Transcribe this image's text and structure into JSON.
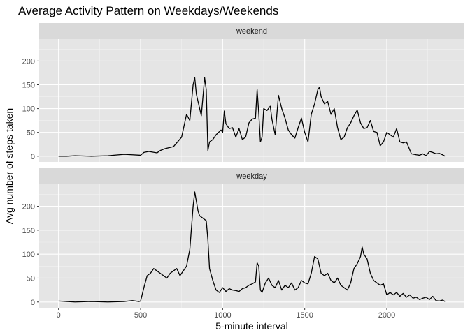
{
  "chart_data": {
    "type": "line",
    "title": "Average Activity Pattern on Weekdays/Weekends",
    "xlabel": "5-minute interval",
    "ylabel": "Avg number of steps taken",
    "xlim": [
      0,
      2355
    ],
    "ylim": [
      0,
      240
    ],
    "x_ticks": [
      0,
      500,
      1000,
      1500,
      2000
    ],
    "x_tick_labels": [
      "0",
      "500",
      "1000",
      "1500",
      "2000"
    ],
    "y_ticks": [
      0,
      50,
      100,
      150,
      200
    ],
    "y_tick_labels": [
      "0",
      "50",
      "100",
      "150",
      "200"
    ],
    "grid": true,
    "line_color": "#000000",
    "panel_background": "#e5e5e5",
    "strip_background": "#d9d9d9",
    "panels": [
      {
        "label": "weekend",
        "points": [
          [
            0,
            0
          ],
          [
            50,
            0
          ],
          [
            100,
            1
          ],
          [
            200,
            0
          ],
          [
            300,
            1
          ],
          [
            400,
            4
          ],
          [
            450,
            3
          ],
          [
            500,
            2
          ],
          [
            520,
            8
          ],
          [
            550,
            10
          ],
          [
            600,
            7
          ],
          [
            620,
            12
          ],
          [
            650,
            16
          ],
          [
            700,
            20
          ],
          [
            720,
            28
          ],
          [
            750,
            40
          ],
          [
            780,
            88
          ],
          [
            800,
            75
          ],
          [
            820,
            150
          ],
          [
            830,
            165
          ],
          [
            840,
            130
          ],
          [
            850,
            115
          ],
          [
            860,
            100
          ],
          [
            870,
            85
          ],
          [
            890,
            165
          ],
          [
            900,
            140
          ],
          [
            910,
            12
          ],
          [
            920,
            30
          ],
          [
            940,
            35
          ],
          [
            960,
            45
          ],
          [
            990,
            55
          ],
          [
            1000,
            50
          ],
          [
            1010,
            95
          ],
          [
            1020,
            68
          ],
          [
            1040,
            58
          ],
          [
            1060,
            60
          ],
          [
            1080,
            40
          ],
          [
            1100,
            58
          ],
          [
            1120,
            35
          ],
          [
            1140,
            40
          ],
          [
            1160,
            70
          ],
          [
            1180,
            78
          ],
          [
            1200,
            80
          ],
          [
            1210,
            140
          ],
          [
            1220,
            90
          ],
          [
            1230,
            30
          ],
          [
            1240,
            40
          ],
          [
            1250,
            100
          ],
          [
            1270,
            96
          ],
          [
            1290,
            105
          ],
          [
            1300,
            78
          ],
          [
            1320,
            45
          ],
          [
            1340,
            128
          ],
          [
            1360,
            100
          ],
          [
            1380,
            80
          ],
          [
            1400,
            55
          ],
          [
            1420,
            45
          ],
          [
            1440,
            38
          ],
          [
            1460,
            60
          ],
          [
            1480,
            80
          ],
          [
            1500,
            50
          ],
          [
            1520,
            30
          ],
          [
            1540,
            88
          ],
          [
            1560,
            110
          ],
          [
            1580,
            140
          ],
          [
            1590,
            145
          ],
          [
            1600,
            125
          ],
          [
            1620,
            110
          ],
          [
            1640,
            115
          ],
          [
            1660,
            88
          ],
          [
            1680,
            100
          ],
          [
            1700,
            60
          ],
          [
            1720,
            35
          ],
          [
            1740,
            40
          ],
          [
            1760,
            60
          ],
          [
            1780,
            70
          ],
          [
            1800,
            85
          ],
          [
            1820,
            97
          ],
          [
            1840,
            70
          ],
          [
            1860,
            58
          ],
          [
            1880,
            60
          ],
          [
            1900,
            75
          ],
          [
            1920,
            52
          ],
          [
            1940,
            50
          ],
          [
            1960,
            22
          ],
          [
            1980,
            30
          ],
          [
            2000,
            50
          ],
          [
            2020,
            45
          ],
          [
            2040,
            40
          ],
          [
            2060,
            58
          ],
          [
            2080,
            30
          ],
          [
            2100,
            28
          ],
          [
            2120,
            30
          ],
          [
            2150,
            5
          ],
          [
            2180,
            3
          ],
          [
            2200,
            2
          ],
          [
            2220,
            5
          ],
          [
            2240,
            1
          ],
          [
            2260,
            10
          ],
          [
            2280,
            8
          ],
          [
            2300,
            5
          ],
          [
            2320,
            6
          ],
          [
            2340,
            3
          ],
          [
            2355,
            0
          ]
        ]
      },
      {
        "label": "weekday",
        "points": [
          [
            0,
            2
          ],
          [
            50,
            1
          ],
          [
            100,
            0
          ],
          [
            200,
            1
          ],
          [
            300,
            0
          ],
          [
            400,
            1
          ],
          [
            450,
            3
          ],
          [
            490,
            1
          ],
          [
            500,
            2
          ],
          [
            520,
            30
          ],
          [
            540,
            55
          ],
          [
            560,
            60
          ],
          [
            580,
            70
          ],
          [
            600,
            65
          ],
          [
            620,
            60
          ],
          [
            640,
            55
          ],
          [
            660,
            50
          ],
          [
            680,
            60
          ],
          [
            700,
            65
          ],
          [
            720,
            70
          ],
          [
            740,
            55
          ],
          [
            760,
            65
          ],
          [
            780,
            75
          ],
          [
            800,
            110
          ],
          [
            820,
            200
          ],
          [
            830,
            230
          ],
          [
            840,
            210
          ],
          [
            850,
            190
          ],
          [
            860,
            180
          ],
          [
            880,
            175
          ],
          [
            900,
            170
          ],
          [
            910,
            130
          ],
          [
            920,
            70
          ],
          [
            940,
            45
          ],
          [
            960,
            25
          ],
          [
            980,
            20
          ],
          [
            1000,
            30
          ],
          [
            1020,
            22
          ],
          [
            1040,
            28
          ],
          [
            1060,
            25
          ],
          [
            1080,
            24
          ],
          [
            1100,
            22
          ],
          [
            1120,
            28
          ],
          [
            1140,
            30
          ],
          [
            1160,
            35
          ],
          [
            1180,
            38
          ],
          [
            1200,
            42
          ],
          [
            1210,
            82
          ],
          [
            1220,
            75
          ],
          [
            1230,
            25
          ],
          [
            1240,
            20
          ],
          [
            1260,
            40
          ],
          [
            1280,
            50
          ],
          [
            1300,
            35
          ],
          [
            1320,
            30
          ],
          [
            1340,
            45
          ],
          [
            1360,
            25
          ],
          [
            1380,
            35
          ],
          [
            1400,
            30
          ],
          [
            1420,
            40
          ],
          [
            1440,
            25
          ],
          [
            1460,
            30
          ],
          [
            1480,
            45
          ],
          [
            1500,
            40
          ],
          [
            1520,
            38
          ],
          [
            1540,
            60
          ],
          [
            1560,
            95
          ],
          [
            1580,
            90
          ],
          [
            1600,
            60
          ],
          [
            1620,
            55
          ],
          [
            1640,
            60
          ],
          [
            1660,
            45
          ],
          [
            1680,
            40
          ],
          [
            1700,
            50
          ],
          [
            1720,
            35
          ],
          [
            1740,
            30
          ],
          [
            1760,
            25
          ],
          [
            1780,
            40
          ],
          [
            1800,
            70
          ],
          [
            1820,
            80
          ],
          [
            1840,
            95
          ],
          [
            1850,
            115
          ],
          [
            1860,
            100
          ],
          [
            1880,
            90
          ],
          [
            1900,
            60
          ],
          [
            1920,
            45
          ],
          [
            1940,
            40
          ],
          [
            1960,
            35
          ],
          [
            1980,
            38
          ],
          [
            2000,
            15
          ],
          [
            2020,
            20
          ],
          [
            2040,
            15
          ],
          [
            2060,
            20
          ],
          [
            2080,
            12
          ],
          [
            2100,
            18
          ],
          [
            2120,
            10
          ],
          [
            2140,
            15
          ],
          [
            2160,
            8
          ],
          [
            2180,
            10
          ],
          [
            2200,
            5
          ],
          [
            2220,
            8
          ],
          [
            2240,
            10
          ],
          [
            2260,
            5
          ],
          [
            2280,
            12
          ],
          [
            2300,
            3
          ],
          [
            2320,
            2
          ],
          [
            2340,
            4
          ],
          [
            2355,
            1
          ]
        ]
      }
    ]
  }
}
